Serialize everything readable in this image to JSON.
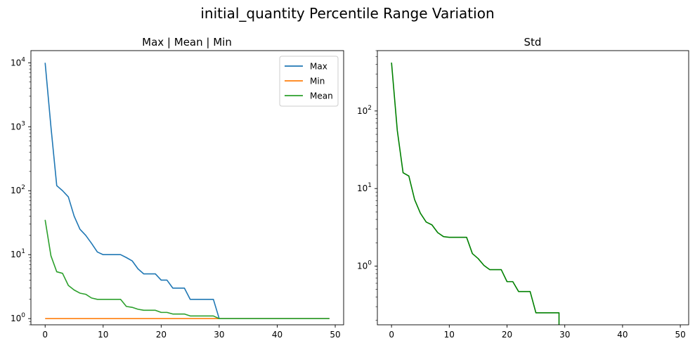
{
  "figure": {
    "title": "initial_quantity Percentile Range Variation"
  },
  "chart_data": [
    {
      "type": "line",
      "title": "Max | Mean | Min",
      "xlabel": "",
      "ylabel": "",
      "yscale": "log",
      "xlim": [
        -2.45,
        51.45
      ],
      "ylim": [
        0.8,
        15500
      ],
      "xticks": [
        0,
        10,
        20,
        30,
        40,
        50
      ],
      "yticks": [
        1,
        10,
        100,
        1000,
        10000
      ],
      "ytick_labels": [
        {
          "base": "10",
          "exp": "0"
        },
        {
          "base": "10",
          "exp": "1"
        },
        {
          "base": "10",
          "exp": "2"
        },
        {
          "base": "10",
          "exp": "3"
        },
        {
          "base": "10",
          "exp": "4"
        }
      ],
      "grid": false,
      "legend": "top-right",
      "x": [
        0,
        1,
        2,
        3,
        4,
        5,
        6,
        7,
        8,
        9,
        10,
        11,
        12,
        13,
        14,
        15,
        16,
        17,
        18,
        19,
        20,
        21,
        22,
        23,
        24,
        25,
        26,
        27,
        28,
        29,
        30,
        31,
        32,
        33,
        34,
        35,
        36,
        37,
        38,
        39,
        40,
        41,
        42,
        43,
        44,
        45,
        46,
        47,
        48,
        49
      ],
      "series": [
        {
          "name": "Max",
          "color": "#1f77b4",
          "values": [
            10000,
            1000,
            120,
            100,
            80,
            40,
            25,
            20,
            15,
            11,
            10,
            10,
            10,
            10,
            9,
            8,
            6,
            5,
            5,
            5,
            4,
            4,
            3,
            3,
            3,
            2,
            2,
            2,
            2,
            2,
            1,
            1,
            1,
            1,
            1,
            1,
            1,
            1,
            1,
            1,
            1,
            1,
            1,
            1,
            1,
            1,
            1,
            1,
            1,
            1
          ]
        },
        {
          "name": "Min",
          "color": "#ff7f0e",
          "values": [
            1,
            1,
            1,
            1,
            1,
            1,
            1,
            1,
            1,
            1,
            1,
            1,
            1,
            1,
            1,
            1,
            1,
            1,
            1,
            1,
            1,
            1,
            1,
            1,
            1,
            1,
            1,
            1,
            1,
            1,
            1,
            1,
            1,
            1,
            1,
            1,
            1,
            1,
            1,
            1,
            1,
            1,
            1,
            1,
            1,
            1,
            1,
            1,
            1,
            1
          ]
        },
        {
          "name": "Mean",
          "color": "#2ca02c",
          "values": [
            35,
            9.6,
            5.4,
            5.1,
            3.3,
            2.8,
            2.5,
            2.4,
            2.1,
            2,
            2,
            2,
            2,
            2,
            1.55,
            1.5,
            1.4,
            1.35,
            1.35,
            1.35,
            1.25,
            1.25,
            1.18,
            1.18,
            1.18,
            1.1,
            1.1,
            1.1,
            1.1,
            1.1,
            1,
            1,
            1,
            1,
            1,
            1,
            1,
            1,
            1,
            1,
            1,
            1,
            1,
            1,
            1,
            1,
            1,
            1,
            1,
            1
          ]
        }
      ]
    },
    {
      "type": "line",
      "title": "Std",
      "xlabel": "",
      "ylabel": "",
      "yscale": "log",
      "xlim": [
        -2.45,
        51.45
      ],
      "ylim": [
        0.175,
        600
      ],
      "xticks": [
        0,
        10,
        20,
        30,
        40,
        50
      ],
      "yticks": [
        1,
        10,
        100
      ],
      "ytick_labels": [
        {
          "base": "10",
          "exp": "0"
        },
        {
          "base": "10",
          "exp": "1"
        },
        {
          "base": "10",
          "exp": "2"
        }
      ],
      "grid": false,
      "legend": "none",
      "x": [
        0,
        1,
        2,
        3,
        4,
        5,
        6,
        7,
        8,
        9,
        10,
        11,
        12,
        13,
        14,
        15,
        16,
        17,
        18,
        19,
        20,
        21,
        22,
        23,
        24,
        25,
        26,
        27,
        28,
        29
      ],
      "series": [
        {
          "name": "",
          "color": "#008000",
          "values": [
            420,
            56,
            16,
            14.5,
            7.2,
            4.8,
            3.7,
            3.4,
            2.7,
            2.4,
            2.35,
            2.35,
            2.35,
            2.35,
            1.45,
            1.25,
            1.02,
            0.9,
            0.9,
            0.9,
            0.63,
            0.63,
            0.47,
            0.47,
            0.47,
            0.25,
            0.25,
            0.25,
            0.25,
            0.25
          ]
        }
      ],
      "drop_at_end": 29
    }
  ]
}
